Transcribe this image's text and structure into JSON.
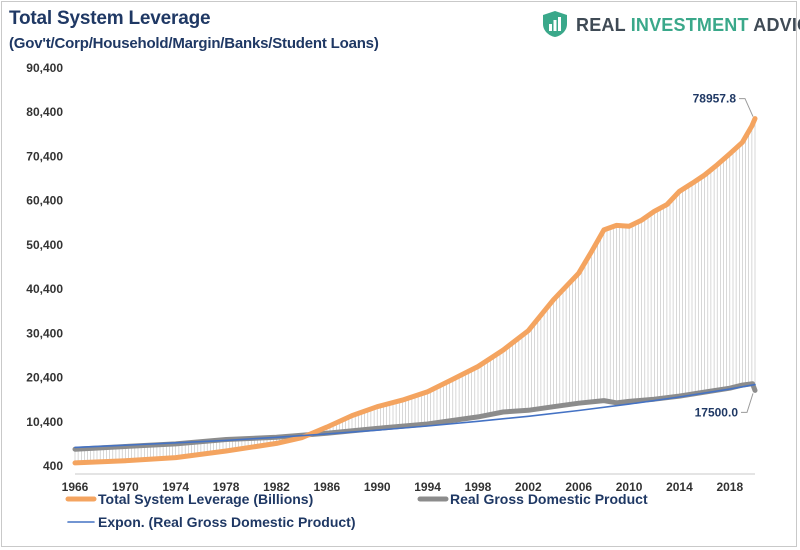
{
  "chart_data": {
    "type": "line",
    "title": "Total System Leverage",
    "subtitle": "(Gov't/Corp/Household/Margin/Banks/Student Loans)",
    "ylim": [
      400,
      90400
    ],
    "xlim": [
      1966,
      2020
    ],
    "y_ticks": [
      "400",
      "10,400",
      "20,400",
      "30,400",
      "40,400",
      "50,400",
      "60,400",
      "70,400",
      "80,400",
      "90,400"
    ],
    "y_tick_values": [
      400,
      10400,
      20400,
      30400,
      40400,
      50400,
      60400,
      70400,
      80400,
      90400
    ],
    "x_ticks": [
      "1966",
      "1970",
      "1974",
      "1978",
      "1982",
      "1986",
      "1990",
      "1994",
      "1998",
      "2002",
      "2006",
      "2010",
      "2014",
      "2018"
    ],
    "x_tick_values": [
      1966,
      1970,
      1974,
      1978,
      1982,
      1986,
      1990,
      1994,
      1998,
      2002,
      2006,
      2010,
      2014,
      2018
    ],
    "grid": false,
    "legend_position": "bottom",
    "series": [
      {
        "name": "Total System Leverage (Billions)",
        "color": "#f4a460",
        "style": "thick-line",
        "x": [
          1966,
          1970,
          1974,
          1978,
          1982,
          1984,
          1986,
          1988,
          1990,
          1992,
          1994,
          1996,
          1998,
          2000,
          2002,
          2004,
          2006,
          2007,
          2008,
          2009,
          2010,
          2011,
          2012,
          2013,
          2014,
          2015,
          2016,
          2017,
          2018,
          2019,
          2019.75,
          2020
        ],
        "y": [
          1100,
          1600,
          2300,
          3800,
          5500,
          6800,
          9200,
          11800,
          13800,
          15300,
          17200,
          20000,
          22900,
          26600,
          31000,
          38000,
          44000,
          48800,
          53800,
          54800,
          54600,
          56000,
          58000,
          59500,
          62500,
          64300,
          66200,
          68500,
          71000,
          73600,
          77300,
          78957.8
        ]
      },
      {
        "name": "Real Gross Domestic Product",
        "color": "#8c8c8c",
        "style": "thick-line",
        "x": [
          1966,
          1970,
          1974,
          1978,
          1982,
          1986,
          1990,
          1994,
          1998,
          2000,
          2002,
          2004,
          2006,
          2008,
          2009,
          2010,
          2012,
          2014,
          2016,
          2018,
          2019,
          2019.8,
          2020
        ],
        "y": [
          4200,
          4800,
          5400,
          6400,
          6900,
          7800,
          8900,
          9900,
          11500,
          12600,
          13000,
          13800,
          14600,
          15200,
          14700,
          15000,
          15500,
          16200,
          17100,
          18000,
          18700,
          19000,
          17500
        ]
      },
      {
        "name": "Expon. (Real Gross Domestic Product)",
        "color": "#4472c4",
        "style": "thin-line",
        "x": [
          1966,
          1970,
          1974,
          1978,
          1982,
          1986,
          1990,
          1994,
          1998,
          2002,
          2006,
          2010,
          2014,
          2018,
          2020
        ],
        "y": [
          4600,
          5100,
          5650,
          6200,
          6900,
          7650,
          8500,
          9450,
          10500,
          11650,
          12950,
          14400,
          16000,
          17800,
          18800
        ]
      }
    ],
    "annotations": [
      {
        "text": "78957.8",
        "x": 2020,
        "y": 78957.8
      },
      {
        "text": "17500.0",
        "x": 2020,
        "y": 17500
      }
    ]
  },
  "brand": {
    "word1": "REAL",
    "word2": "INVESTMENT",
    "word3": "ADVICE"
  }
}
